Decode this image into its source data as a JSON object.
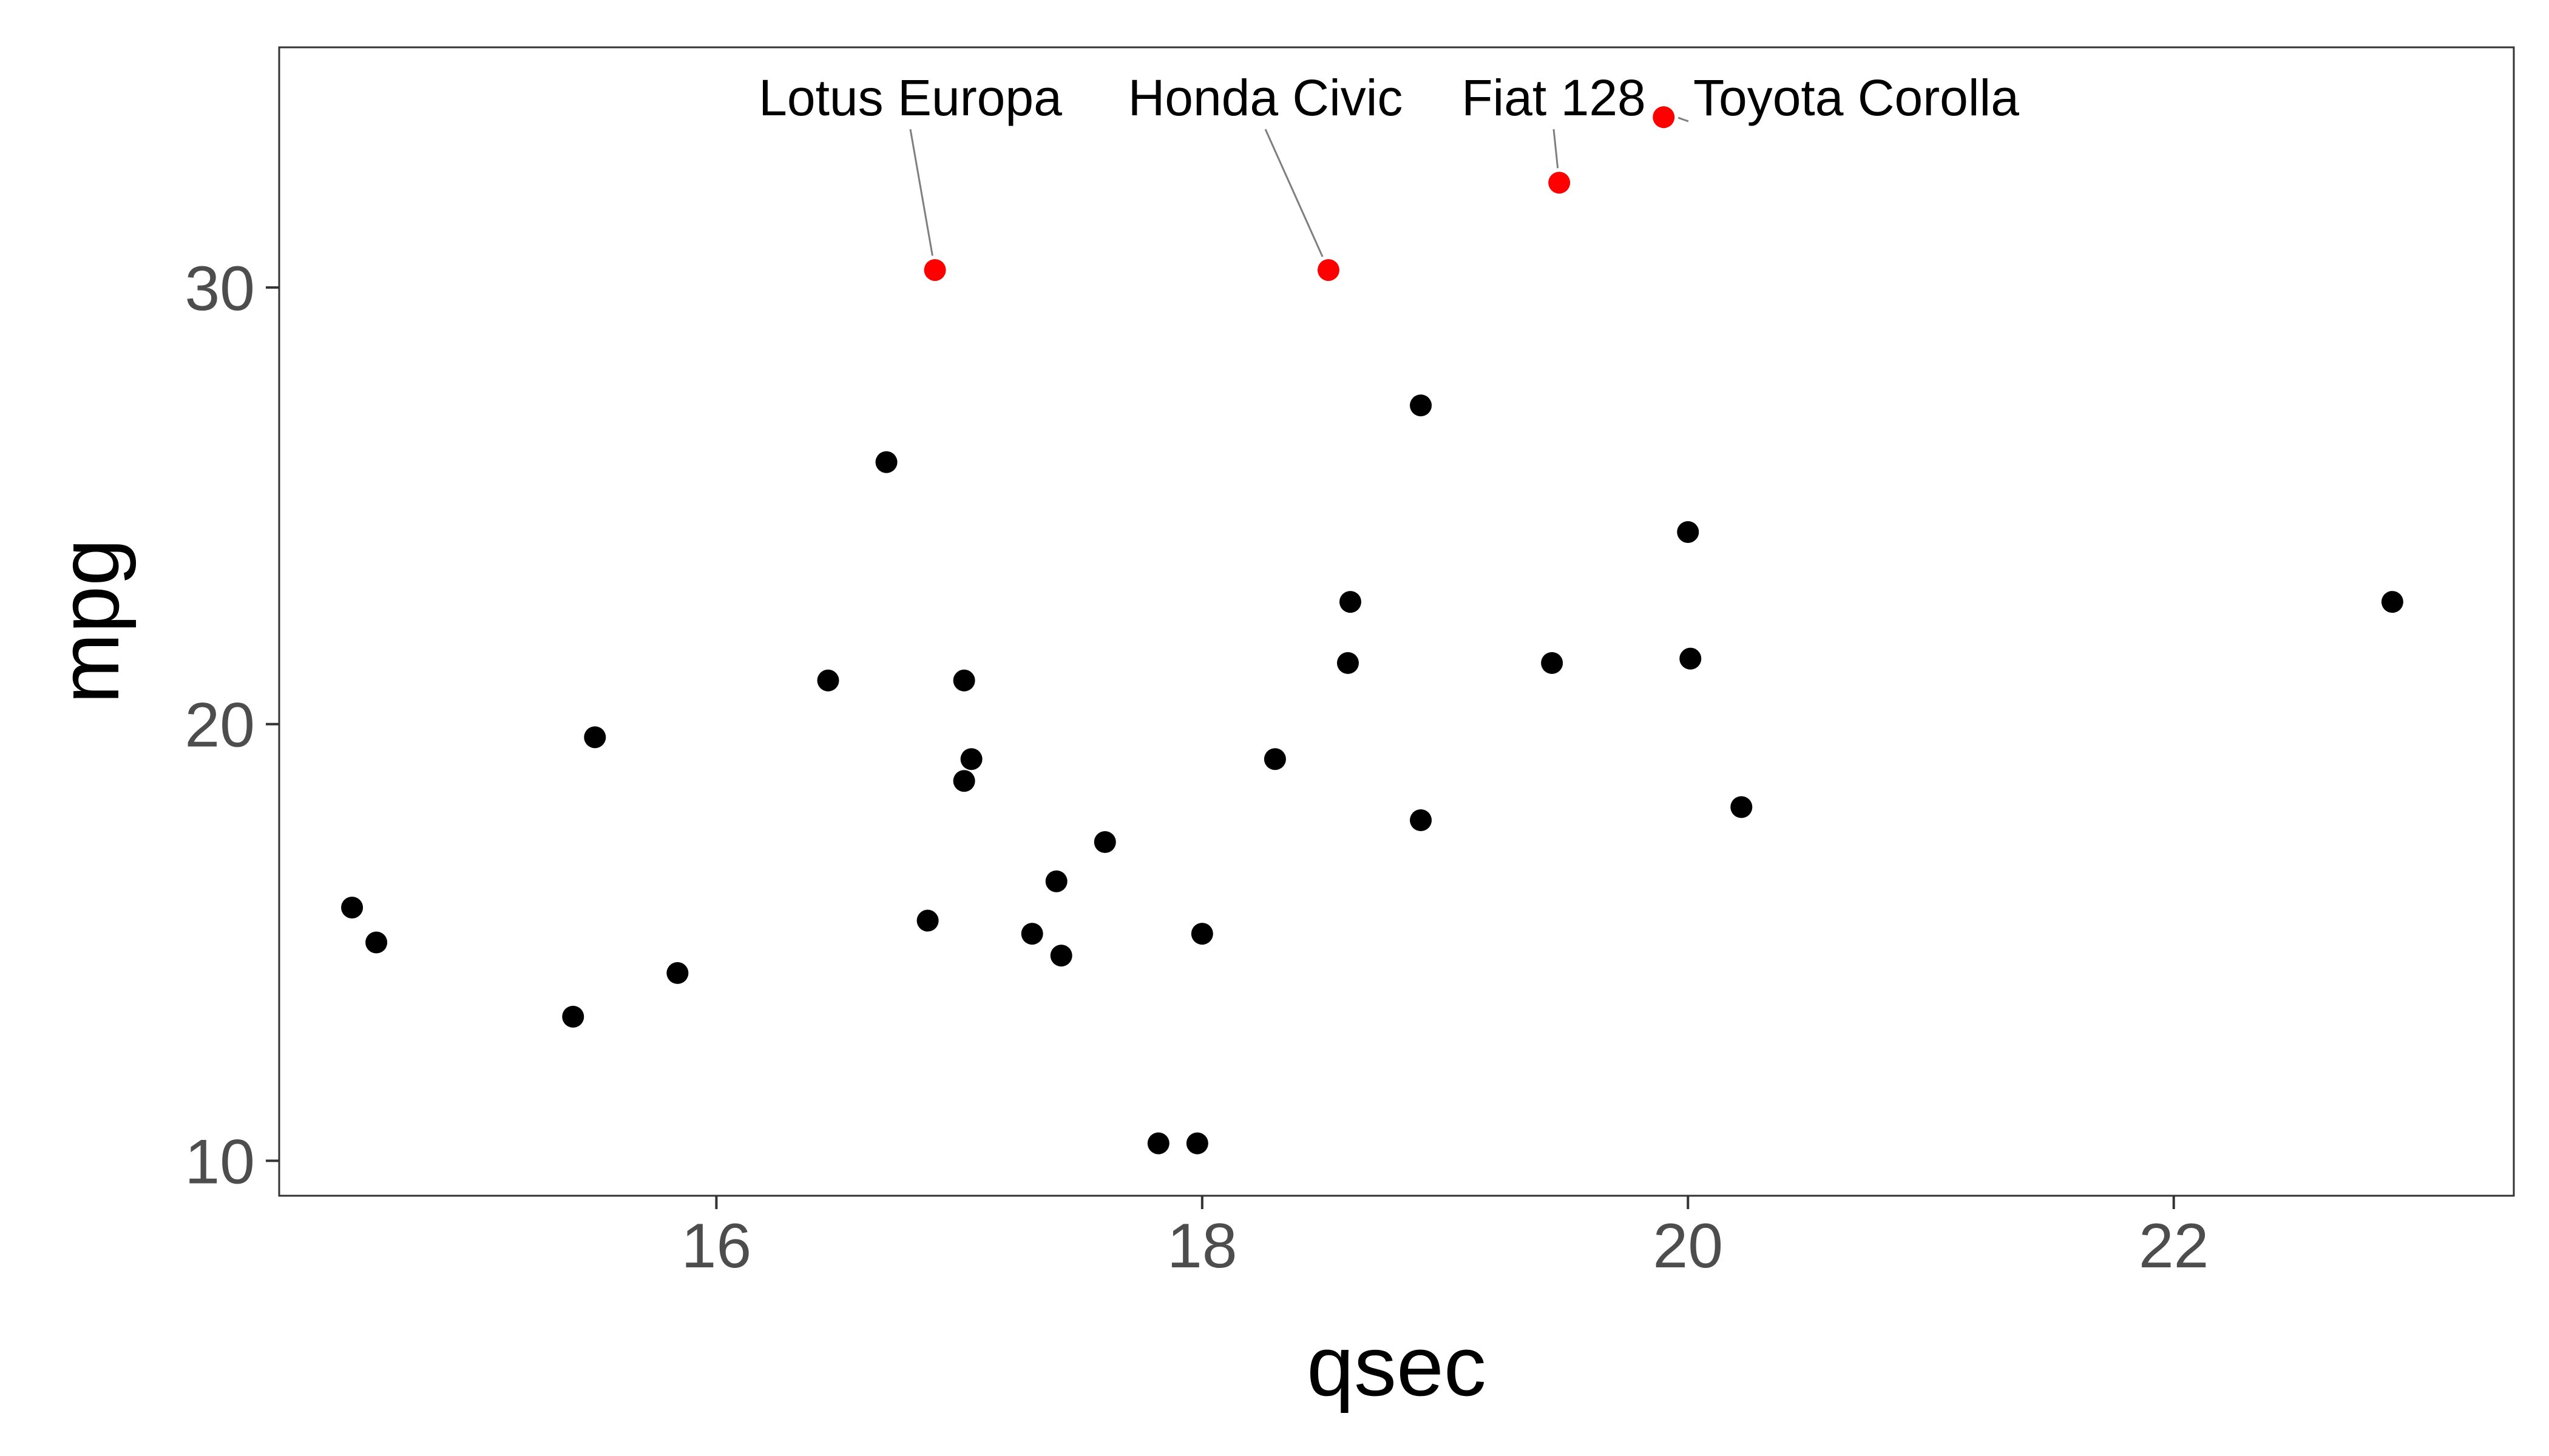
{
  "chart_data": {
    "type": "scatter",
    "title": "",
    "xlabel": "qsec",
    "ylabel": "mpg",
    "xlim": [
      14.2,
      23.4
    ],
    "ylim": [
      9.2,
      35.5
    ],
    "xticks": [
      16,
      18,
      20,
      22
    ],
    "yticks": [
      10,
      20,
      30
    ],
    "grid": false,
    "colors": {
      "point": "#000000",
      "highlight": "#ff0000",
      "leader": "#7f7f7f",
      "frame": "#333333"
    },
    "points": [
      {
        "x": 16.46,
        "y": 21.0
      },
      {
        "x": 17.02,
        "y": 21.0
      },
      {
        "x": 18.61,
        "y": 22.8
      },
      {
        "x": 19.44,
        "y": 21.4
      },
      {
        "x": 17.02,
        "y": 18.7
      },
      {
        "x": 20.22,
        "y": 18.1
      },
      {
        "x": 15.84,
        "y": 14.3
      },
      {
        "x": 20.0,
        "y": 24.4
      },
      {
        "x": 22.9,
        "y": 22.8
      },
      {
        "x": 18.3,
        "y": 19.2
      },
      {
        "x": 18.9,
        "y": 17.8
      },
      {
        "x": 17.4,
        "y": 16.4
      },
      {
        "x": 17.6,
        "y": 17.3
      },
      {
        "x": 18.0,
        "y": 15.2
      },
      {
        "x": 17.98,
        "y": 10.4
      },
      {
        "x": 17.82,
        "y": 10.4
      },
      {
        "x": 17.42,
        "y": 14.7
      },
      {
        "x": 20.01,
        "y": 21.5
      },
      {
        "x": 16.87,
        "y": 15.5
      },
      {
        "x": 17.3,
        "y": 15.2
      },
      {
        "x": 15.41,
        "y": 13.3
      },
      {
        "x": 17.05,
        "y": 19.2
      },
      {
        "x": 18.9,
        "y": 27.3
      },
      {
        "x": 16.7,
        "y": 26.0
      },
      {
        "x": 14.5,
        "y": 15.8
      },
      {
        "x": 15.5,
        "y": 19.7
      },
      {
        "x": 14.6,
        "y": 15.0
      },
      {
        "x": 18.6,
        "y": 21.4
      }
    ],
    "highlighted": [
      {
        "label": "Lotus Europa",
        "x": 16.9,
        "y": 30.4
      },
      {
        "label": "Honda Civic",
        "x": 18.52,
        "y": 30.4
      },
      {
        "label": "Fiat 128",
        "x": 19.47,
        "y": 32.4
      },
      {
        "label": "Toyota Corolla",
        "x": 19.9,
        "y": 33.9
      }
    ]
  }
}
